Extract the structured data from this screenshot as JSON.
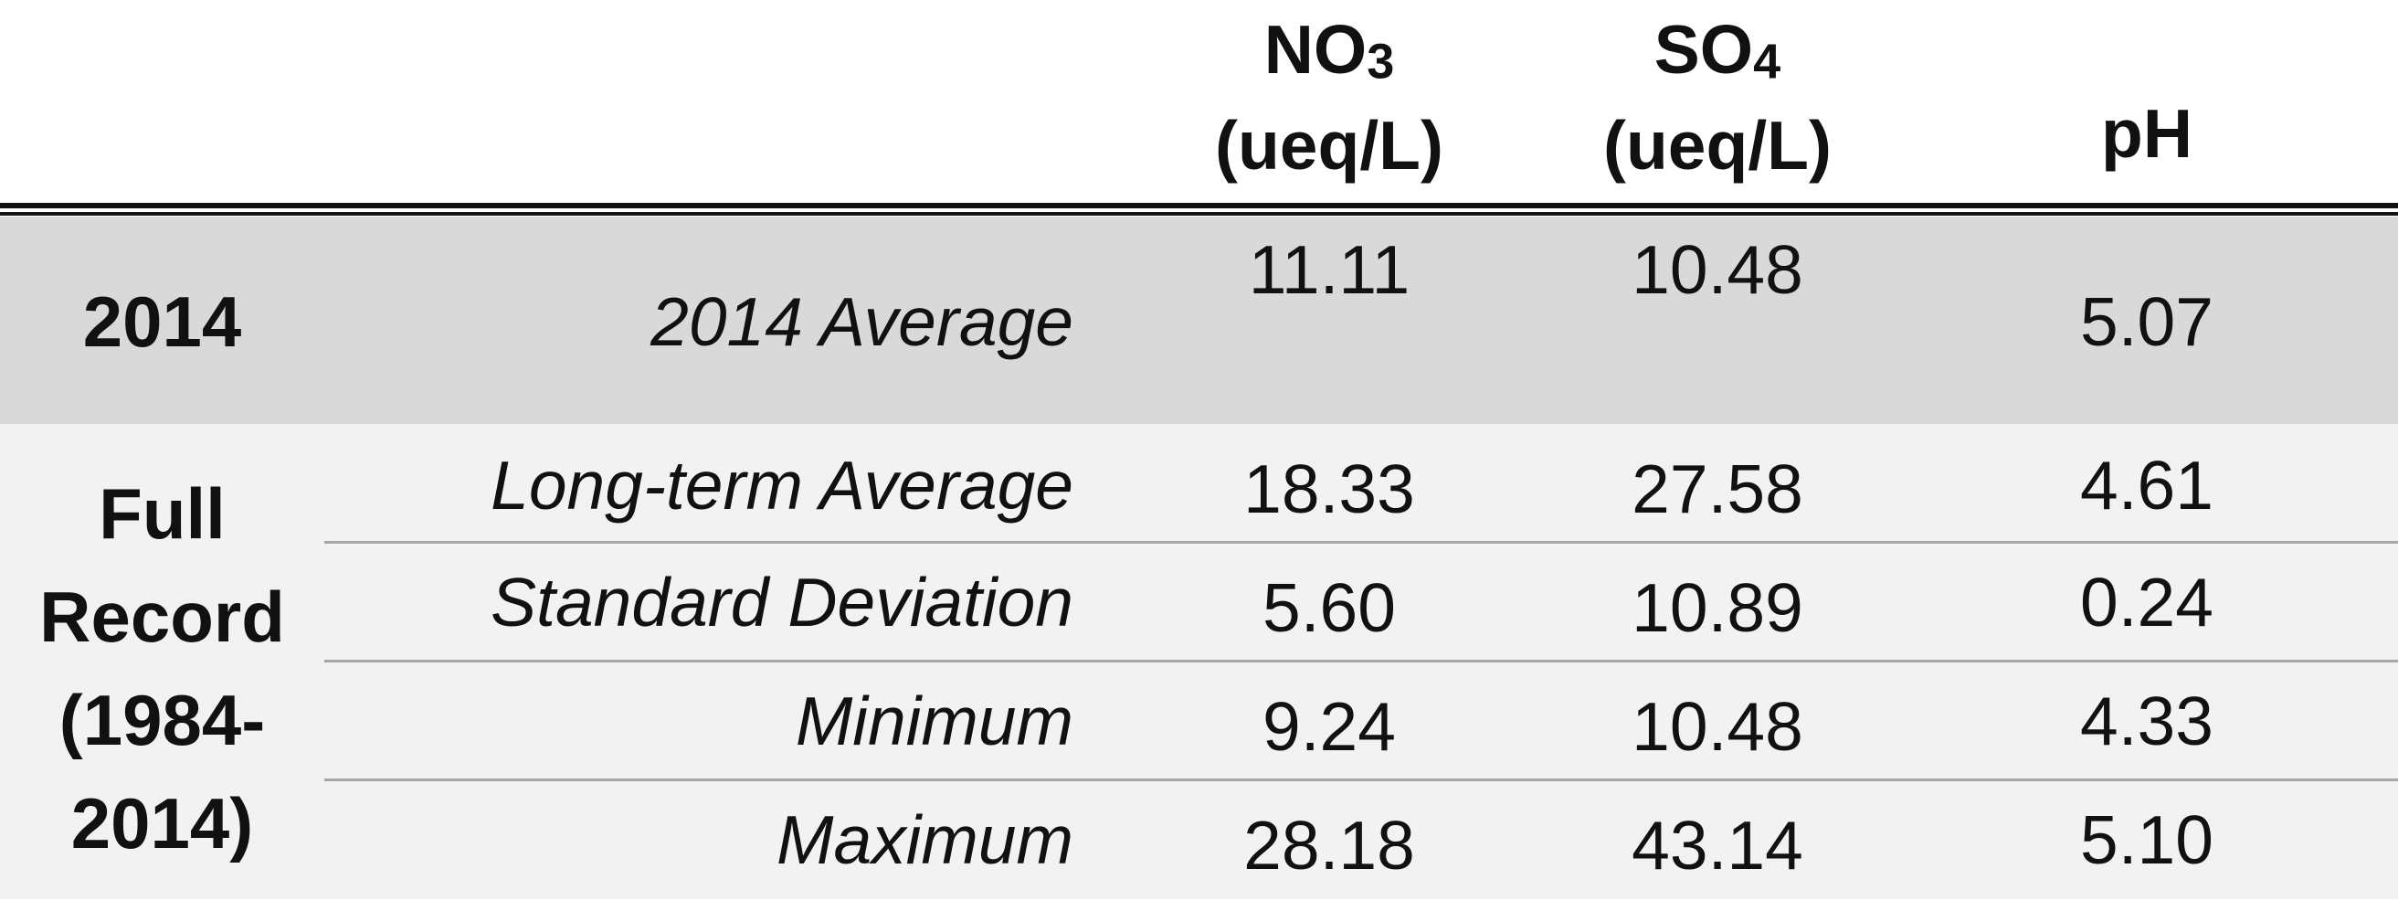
{
  "table": {
    "headers": {
      "no3": {
        "name": "NO",
        "subscript": "3",
        "unit": "(ueq/L)"
      },
      "so4": {
        "name": "SO",
        "subscript": "4",
        "unit": "(ueq/L)"
      },
      "ph": {
        "name": "pH"
      }
    },
    "group_2014": {
      "label": "2014",
      "rows": [
        {
          "stat": "2014 Average",
          "no3": "11.11",
          "so4": "10.48",
          "ph": "5.07"
        }
      ]
    },
    "group_full": {
      "label_lines": [
        "Full",
        "Record",
        "(1984-",
        "2014)"
      ],
      "rows": [
        {
          "stat": "Long-term Average",
          "no3": "18.33",
          "so4": "27.58",
          "ph": "4.61"
        },
        {
          "stat": "Standard Deviation",
          "no3": "5.60",
          "so4": "10.89",
          "ph": "0.24"
        },
        {
          "stat": "Minimum",
          "no3": "9.24",
          "so4": "10.48",
          "ph": "4.33"
        },
        {
          "stat": "Maximum",
          "no3": "28.18",
          "so4": "43.14",
          "ph": "5.10"
        }
      ]
    }
  }
}
